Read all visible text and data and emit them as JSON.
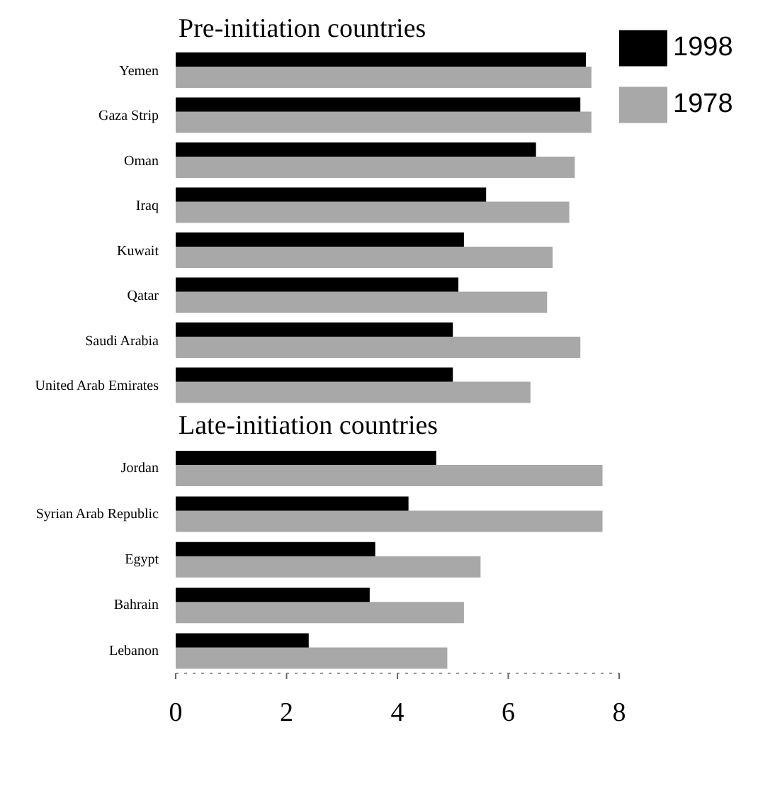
{
  "chart_data": [
    {
      "type": "bar",
      "orientation": "horizontal",
      "title": "Pre-initiation countries",
      "categories": [
        "Yemen",
        "Gaza Strip",
        "Oman",
        "Iraq",
        "Kuwait",
        "Qatar",
        "Saudi Arabia",
        "United Arab Emirates"
      ],
      "series": [
        {
          "name": "1998",
          "color": "#000000",
          "values": [
            7.4,
            7.3,
            6.5,
            5.6,
            5.2,
            5.1,
            5.0,
            5.0
          ]
        },
        {
          "name": "1978",
          "color": "#a8a8a8",
          "values": [
            7.5,
            7.5,
            7.2,
            7.1,
            6.8,
            6.7,
            7.3,
            6.4
          ]
        }
      ],
      "xlim": [
        0,
        8
      ],
      "xticks": [
        0,
        2,
        4,
        6,
        8
      ],
      "tick_labels": "y",
      "legend": "top right"
    },
    {
      "type": "bar",
      "orientation": "horizontal",
      "title": "Late-initiation countries",
      "categories": [
        "Jordan",
        "Syrian Arab Republic",
        "Egypt",
        "Bahrain",
        "Lebanon"
      ],
      "series": [
        {
          "color": "#000000",
          "values": [
            4.7,
            4.2,
            3.6,
            3.5,
            2.4
          ]
        },
        {
          "color": "#a8a8a8",
          "values": [
            7.7,
            7.7,
            5.5,
            5.2,
            4.9
          ]
        }
      ],
      "xlim": [
        0,
        8
      ],
      "xticks": [
        0,
        2,
        4,
        6,
        8
      ]
    }
  ]
}
